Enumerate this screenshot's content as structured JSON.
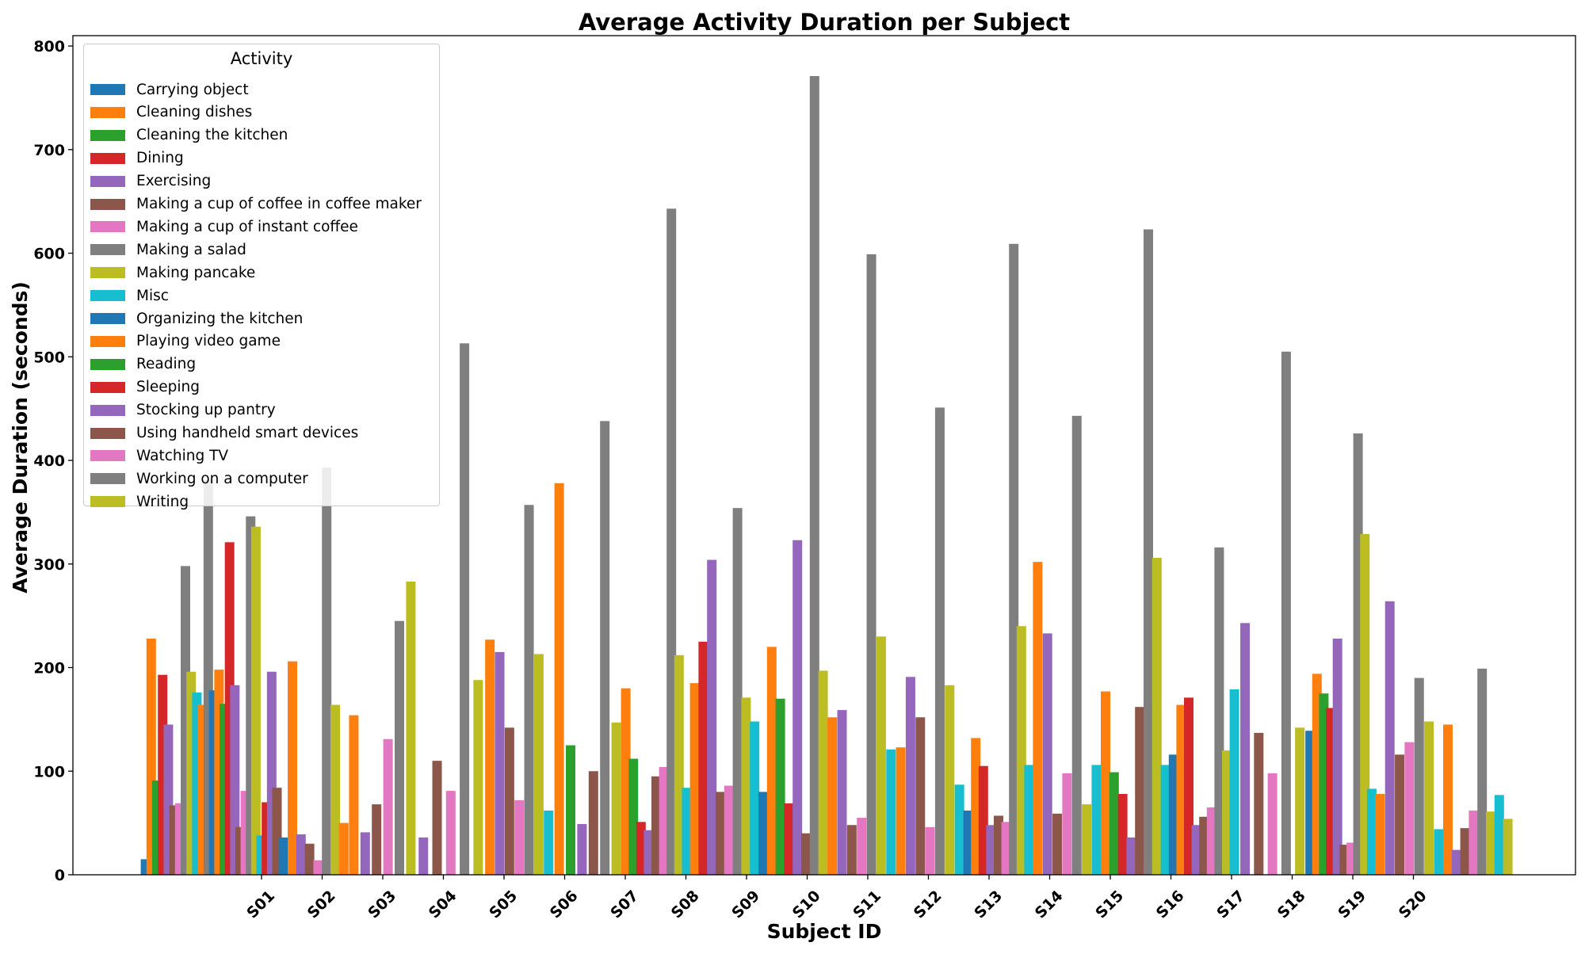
{
  "chart_data": {
    "type": "bar",
    "title": "Average Activity Duration per Subject",
    "xlabel": "Subject ID",
    "ylabel": "Average Duration (seconds)",
    "ylim": [
      0,
      810
    ],
    "yticks": [
      0,
      100,
      200,
      300,
      400,
      500,
      600,
      700,
      800
    ],
    "categories": [
      "S01",
      "S02",
      "S03",
      "S04",
      "S05",
      "S06",
      "S07",
      "S08",
      "S09",
      "S10",
      "S11",
      "S12",
      "S13",
      "S14",
      "S15",
      "S16",
      "S17",
      "S18",
      "S19",
      "S20"
    ],
    "legend_title": "Activity",
    "legend_position": "upper-left",
    "grid": false,
    "activities": [
      {
        "name": "Carrying object",
        "color": "#1f77b4"
      },
      {
        "name": "Cleaning dishes",
        "color": "#ff7f0e"
      },
      {
        "name": "Cleaning the kitchen",
        "color": "#2ca02c"
      },
      {
        "name": "Dining",
        "color": "#d62728"
      },
      {
        "name": "Exercising",
        "color": "#9467bd"
      },
      {
        "name": "Making a cup of coffee in coffee maker",
        "color": "#8c564b"
      },
      {
        "name": "Making a cup of instant coffee",
        "color": "#e377c2"
      },
      {
        "name": "Making a salad",
        "color": "#7f7f7f"
      },
      {
        "name": "Making pancake",
        "color": "#bcbd22"
      },
      {
        "name": "Misc",
        "color": "#17becf"
      },
      {
        "name": "Organizing the kitchen",
        "color": "#1f77b4"
      },
      {
        "name": "Playing video game",
        "color": "#ff7f0e"
      },
      {
        "name": "Reading",
        "color": "#2ca02c"
      },
      {
        "name": "Sleeping",
        "color": "#d62728"
      },
      {
        "name": "Stocking up pantry",
        "color": "#9467bd"
      },
      {
        "name": "Using handheld smart devices",
        "color": "#8c564b"
      },
      {
        "name": "Watching TV",
        "color": "#e377c2"
      },
      {
        "name": "Working on a computer",
        "color": "#7f7f7f"
      },
      {
        "name": "Writing",
        "color": "#bcbd22"
      }
    ],
    "series": [
      {
        "name": "Carrying object",
        "values": [
          15,
          178,
          36,
          null,
          null,
          null,
          null,
          null,
          null,
          80,
          null,
          null,
          62,
          null,
          null,
          116,
          null,
          139,
          null,
          null
        ]
      },
      {
        "name": "Cleaning dishes",
        "values": [
          228,
          198,
          206,
          154,
          null,
          227,
          378,
          180,
          185,
          220,
          152,
          123,
          132,
          302,
          177,
          164,
          null,
          194,
          78,
          145
        ]
      },
      {
        "name": "Cleaning the kitchen",
        "values": [
          91,
          165,
          null,
          null,
          null,
          null,
          125,
          112,
          null,
          170,
          null,
          null,
          null,
          null,
          99,
          null,
          null,
          175,
          null,
          null
        ]
      },
      {
        "name": "Dining",
        "values": [
          193,
          321,
          null,
          null,
          null,
          null,
          null,
          51,
          225,
          69,
          null,
          null,
          105,
          null,
          78,
          171,
          null,
          161,
          null,
          null
        ]
      },
      {
        "name": "Exercising",
        "values": [
          145,
          183,
          39,
          41,
          36,
          215,
          49,
          43,
          304,
          323,
          159,
          191,
          48,
          233,
          36,
          48,
          243,
          228,
          264,
          24
        ]
      },
      {
        "name": "Making a cup of coffee in coffee maker",
        "values": [
          67,
          46,
          30,
          68,
          110,
          142,
          100,
          95,
          80,
          40,
          48,
          152,
          57,
          59,
          162,
          56,
          137,
          29,
          116,
          45
        ]
      },
      {
        "name": "Making a cup of instant coffee",
        "values": [
          69,
          81,
          14,
          131,
          81,
          72,
          null,
          104,
          86,
          null,
          55,
          46,
          51,
          98,
          null,
          65,
          98,
          31,
          128,
          62
        ]
      },
      {
        "name": "Making a salad",
        "values": [
          298,
          346,
          393,
          245,
          513,
          357,
          438,
          643,
          354,
          771,
          599,
          451,
          609,
          443,
          623,
          316,
          505,
          426,
          190,
          199
        ]
      },
      {
        "name": "Making pancake",
        "values": [
          196,
          336,
          164,
          283,
          188,
          213,
          147,
          212,
          171,
          197,
          230,
          183,
          240,
          68,
          306,
          120,
          142,
          329,
          148,
          61
        ]
      },
      {
        "name": "Misc",
        "values": [
          176,
          38,
          null,
          null,
          null,
          62,
          null,
          84,
          148,
          null,
          121,
          87,
          106,
          106,
          106,
          179,
          null,
          83,
          44,
          77
        ]
      },
      {
        "name": "Organizing the kitchen",
        "values": [
          null,
          null,
          null,
          null,
          null,
          null,
          null,
          null,
          null,
          null,
          null,
          null,
          null,
          null,
          null,
          null,
          null,
          null,
          null,
          null
        ]
      },
      {
        "name": "Playing video game",
        "values": [
          164,
          null,
          50,
          null,
          null,
          null,
          null,
          null,
          null,
          null,
          null,
          null,
          null,
          null,
          null,
          null,
          null,
          null,
          null,
          null
        ]
      },
      {
        "name": "Reading",
        "values": [
          null,
          null,
          null,
          null,
          null,
          null,
          null,
          null,
          null,
          null,
          null,
          null,
          null,
          null,
          null,
          null,
          null,
          null,
          null,
          null
        ]
      },
      {
        "name": "Sleeping",
        "values": [
          null,
          70,
          null,
          null,
          null,
          null,
          null,
          null,
          null,
          null,
          null,
          null,
          null,
          null,
          null,
          null,
          null,
          null,
          null,
          null
        ]
      },
      {
        "name": "Stocking up pantry",
        "values": [
          null,
          196,
          null,
          null,
          null,
          null,
          null,
          null,
          null,
          null,
          null,
          null,
          null,
          null,
          null,
          null,
          null,
          null,
          null,
          null
        ]
      },
      {
        "name": "Using handheld smart devices",
        "values": [
          null,
          84,
          null,
          null,
          null,
          null,
          null,
          null,
          null,
          null,
          null,
          null,
          null,
          null,
          null,
          null,
          null,
          null,
          null,
          null
        ]
      },
      {
        "name": "Watching TV",
        "values": [
          null,
          null,
          null,
          null,
          null,
          null,
          null,
          null,
          null,
          null,
          null,
          null,
          null,
          null,
          null,
          null,
          null,
          null,
          null,
          null
        ]
      },
      {
        "name": "Working on a computer",
        "values": [
          381,
          null,
          null,
          null,
          null,
          null,
          null,
          null,
          null,
          null,
          null,
          null,
          null,
          null,
          null,
          null,
          null,
          null,
          null,
          null
        ]
      },
      {
        "name": "Writing",
        "values": [
          null,
          null,
          null,
          null,
          null,
          null,
          null,
          null,
          null,
          null,
          null,
          null,
          null,
          null,
          null,
          null,
          null,
          null,
          null,
          54
        ]
      }
    ]
  }
}
